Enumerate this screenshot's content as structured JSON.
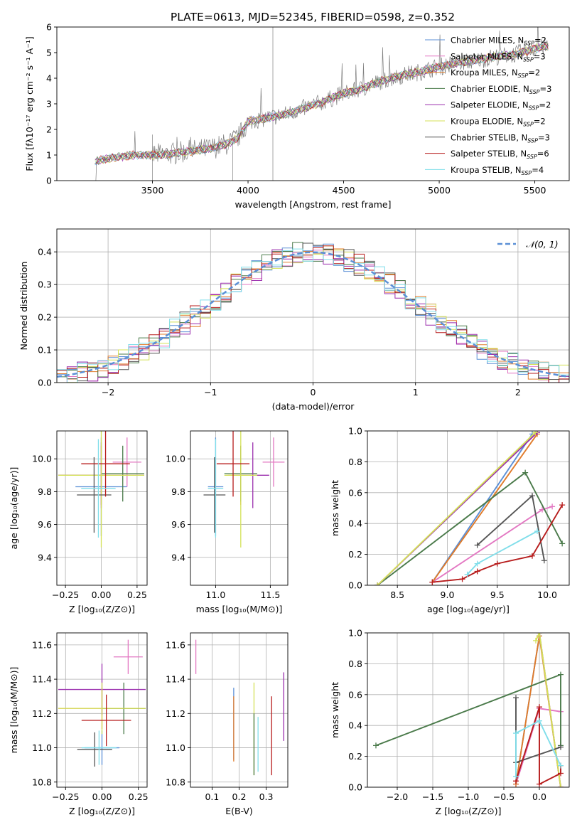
{
  "figure": {
    "title": "PLATE=0613, MJD=52345, FIBERID=0598, z=0.352"
  },
  "colors": {
    "Chabrier MILES": "#5b8fd6",
    "Salpeter MILES": "#e377c2",
    "Kroupa MILES": "#e07b2a",
    "Chabrier ELODIE": "#4a7a4a",
    "Salpeter ELODIE": "#9b2fae",
    "Kroupa ELODIE": "#d4e157",
    "Chabrier STELIB": "#555555",
    "Salpeter STELIB": "#b71c1c",
    "Kroupa STELIB": "#80deea",
    "gaussian": "#5b8fd6",
    "data": "#808080"
  },
  "chart_data": [
    {
      "id": "spectrum",
      "type": "line",
      "xlabel": "wavelength [Angstrom, rest frame]",
      "ylabel": "Flux [fλ10⁻¹⁷ erg cm⁻² s⁻¹ A⁻¹]",
      "xlim": [
        3000,
        5680
      ],
      "ylim": [
        0,
        6
      ],
      "xticks": [
        3500,
        4000,
        4500,
        5000,
        5500
      ],
      "yticks": [
        0,
        1,
        2,
        3,
        4,
        5,
        6
      ],
      "legend": [
        {
          "label": "Chabrier MILES, N",
          "sub": "SSP",
          "suffix": "=2",
          "key": "Chabrier MILES"
        },
        {
          "label": "Salpeter MILES, N",
          "sub": "SSP",
          "suffix": "=3",
          "key": "Salpeter MILES"
        },
        {
          "label": "Kroupa MILES, N",
          "sub": "SSP",
          "suffix": "=2",
          "key": "Kroupa MILES"
        },
        {
          "label": "Chabrier ELODIE, N",
          "sub": "SSP",
          "suffix": "=3",
          "key": "Chabrier ELODIE"
        },
        {
          "label": "Salpeter ELODIE, N",
          "sub": "SSP",
          "suffix": "=2",
          "key": "Salpeter ELODIE"
        },
        {
          "label": "Kroupa ELODIE, N",
          "sub": "SSP",
          "suffix": "=2",
          "key": "Kroupa ELODIE"
        },
        {
          "label": "Chabrier STELIB, N",
          "sub": "SSP",
          "suffix": "=3",
          "key": "Chabrier STELIB"
        },
        {
          "label": "Salpeter STELIB, N",
          "sub": "SSP",
          "suffix": "=6",
          "key": "Salpeter STELIB"
        },
        {
          "label": "Kroupa STELIB, N",
          "sub": "SSP",
          "suffix": "=4",
          "key": "Kroupa STELIB"
        }
      ],
      "legend_position": "upper-right",
      "continuum": {
        "x": [
          3200,
          3300,
          3400,
          3500,
          3600,
          3700,
          3800,
          3900,
          3950,
          4000,
          4100,
          4200,
          4300,
          4400,
          4500,
          4600,
          4700,
          4800,
          4900,
          5000,
          5100,
          5200,
          5300,
          5400,
          5500,
          5570
        ],
        "y": [
          0.75,
          0.9,
          1.0,
          1.0,
          1.05,
          1.15,
          1.25,
          1.45,
          1.7,
          2.3,
          2.45,
          2.6,
          2.85,
          3.1,
          3.4,
          3.6,
          3.9,
          4.1,
          4.25,
          4.45,
          4.6,
          4.7,
          4.85,
          4.95,
          5.15,
          5.25
        ]
      }
    },
    {
      "id": "residuals",
      "type": "line",
      "xlabel": "(data-model)/error",
      "ylabel": "Normed distribution",
      "xlim": [
        -2.5,
        2.5
      ],
      "ylim": [
        0,
        0.47
      ],
      "xticks": [
        -2,
        -1,
        0,
        1,
        2
      ],
      "yticks": [
        0.0,
        0.1,
        0.2,
        0.3,
        0.4
      ],
      "legend": [
        {
          "label": "𝒩(0, 1)",
          "key": "gaussian"
        }
      ],
      "legend_position": "upper-right",
      "grid": true
    },
    {
      "id": "age_vs_Z",
      "type": "scatter",
      "xlabel": "Z [log₁₀(Z/Z⊙)]",
      "ylabel": "age  [log₁₀(age/yr)]",
      "xlim": [
        -0.31,
        0.32
      ],
      "ylim": [
        9.23,
        10.17
      ],
      "xticks": [
        -0.25,
        0.0,
        0.25
      ],
      "yticks": [
        9.4,
        9.6,
        9.8,
        10.0
      ],
      "grid": true,
      "points": [
        {
          "key": "Chabrier MILES",
          "x": 0.0,
          "xerr": 0.18,
          "y": 9.83,
          "yerr": 0.3
        },
        {
          "key": "Salpeter MILES",
          "x": 0.18,
          "xerr": 0.1,
          "y": 9.98,
          "yerr": 0.15
        },
        {
          "key": "Kroupa MILES",
          "x": 0.0,
          "xerr": 0.3,
          "y": 9.9,
          "yerr": 0.18
        },
        {
          "key": "Chabrier ELODIE",
          "x": 0.15,
          "xerr": 0.15,
          "y": 9.91,
          "yerr": 0.17
        },
        {
          "key": "Salpeter ELODIE",
          "x": 0.0,
          "xerr": 0.3,
          "y": 9.9,
          "yerr": 0.2
        },
        {
          "key": "Kroupa ELODIE",
          "x": 0.0,
          "xerr": 0.3,
          "y": 9.9,
          "yerr": 0.44
        },
        {
          "key": "Chabrier STELIB",
          "x": -0.05,
          "xerr": 0.12,
          "y": 9.78,
          "yerr": 0.23
        },
        {
          "key": "Salpeter STELIB",
          "x": 0.03,
          "xerr": 0.17,
          "y": 9.97,
          "yerr": 0.2
        },
        {
          "key": "Kroupa STELIB",
          "x": -0.02,
          "xerr": 0.12,
          "y": 9.82,
          "yerr": 0.3
        }
      ]
    },
    {
      "id": "age_vs_mass",
      "type": "scatter",
      "xlabel": "mass [log₁₀(M/M⊙)]",
      "ylabel": "",
      "xlim": [
        10.77,
        11.66
      ],
      "ylim": [
        9.23,
        10.17
      ],
      "xticks": [
        11.0,
        11.5
      ],
      "yticks": [
        9.4,
        9.6,
        9.8,
        10.0
      ],
      "grid": true,
      "points": [
        {
          "key": "Chabrier MILES",
          "x": 11.0,
          "xerr": 0.07,
          "y": 9.83,
          "yerr": 0.3
        },
        {
          "key": "Salpeter MILES",
          "x": 11.53,
          "xerr": 0.1,
          "y": 9.98,
          "yerr": 0.15
        },
        {
          "key": "Kroupa MILES",
          "x": 11.23,
          "xerr": 0.12,
          "y": 9.9,
          "yerr": 0.18
        },
        {
          "key": "Chabrier ELODIE",
          "x": 11.23,
          "xerr": 0.15,
          "y": 9.91,
          "yerr": 0.17
        },
        {
          "key": "Salpeter ELODIE",
          "x": 11.34,
          "xerr": 0.15,
          "y": 9.9,
          "yerr": 0.2
        },
        {
          "key": "Kroupa ELODIE",
          "x": 11.23,
          "xerr": 0.15,
          "y": 9.9,
          "yerr": 0.44
        },
        {
          "key": "Chabrier STELIB",
          "x": 10.99,
          "xerr": 0.1,
          "y": 9.78,
          "yerr": 0.23
        },
        {
          "key": "Salpeter STELIB",
          "x": 11.16,
          "xerr": 0.15,
          "y": 9.97,
          "yerr": 0.2
        },
        {
          "key": "Kroupa STELIB",
          "x": 11.0,
          "xerr": 0.07,
          "y": 9.82,
          "yerr": 0.3
        }
      ]
    },
    {
      "id": "weight_vs_age",
      "type": "line",
      "xlabel": "age  [log₁₀(age/yr)]",
      "ylabel": "mass weight",
      "xlim": [
        8.2,
        10.22
      ],
      "ylim": [
        0,
        1
      ],
      "xticks": [
        8.5,
        9.0,
        9.5,
        10.0
      ],
      "yticks": [
        0.0,
        0.2,
        0.4,
        0.6,
        0.8,
        1.0
      ],
      "grid": true,
      "series": [
        {
          "key": "Chabrier MILES",
          "x": [
            8.85,
            9.85
          ],
          "y": [
            0.02,
            0.98
          ]
        },
        {
          "key": "Salpeter MILES",
          "x": [
            8.85,
            9.95,
            10.05
          ],
          "y": [
            0.02,
            0.49,
            0.51
          ]
        },
        {
          "key": "Kroupa MILES",
          "x": [
            8.85,
            9.9
          ],
          "y": [
            0.02,
            0.98
          ]
        },
        {
          "key": "Chabrier ELODIE",
          "x": [
            8.3,
            9.78,
            10.15
          ],
          "y": [
            0.0,
            0.73,
            0.27
          ]
        },
        {
          "key": "Salpeter ELODIE",
          "x": [
            8.3,
            9.9
          ],
          "y": [
            0.0,
            0.99
          ]
        },
        {
          "key": "Kroupa ELODIE",
          "x": [
            8.3,
            9.88
          ],
          "y": [
            0.0,
            0.99
          ]
        },
        {
          "key": "Chabrier STELIB",
          "x": [
            9.3,
            9.85,
            9.97
          ],
          "y": [
            0.26,
            0.58,
            0.16
          ]
        },
        {
          "key": "Salpeter STELIB",
          "x": [
            8.85,
            9.15,
            9.3,
            9.5,
            9.85,
            10.15
          ],
          "y": [
            0.02,
            0.04,
            0.09,
            0.14,
            0.19,
            0.52
          ]
        },
        {
          "key": "Kroupa STELIB",
          "x": [
            9.2,
            9.3,
            9.9
          ],
          "y": [
            0.07,
            0.14,
            0.35
          ]
        }
      ]
    },
    {
      "id": "mass_vs_Z",
      "type": "scatter",
      "xlabel": "Z [log₁₀(Z/Z⊙)]",
      "ylabel": "mass [log₁₀(M/M⊙)]",
      "xlim": [
        -0.31,
        0.31
      ],
      "ylim": [
        10.77,
        11.67
      ],
      "xticks": [
        -0.25,
        0.0,
        0.25
      ],
      "yticks": [
        10.8,
        11.0,
        11.2,
        11.4,
        11.6
      ],
      "grid": true,
      "points": [
        {
          "key": "Chabrier MILES",
          "x": 0.0,
          "xerr": 0.12,
          "y": 11.0,
          "yerr": 0.1
        },
        {
          "key": "Salpeter MILES",
          "x": 0.18,
          "xerr": 0.1,
          "y": 11.53,
          "yerr": 0.1
        },
        {
          "key": "Kroupa MILES",
          "x": 0.0,
          "xerr": 0.3,
          "y": 11.23,
          "yerr": 0.12
        },
        {
          "key": "Chabrier ELODIE",
          "x": 0.15,
          "xerr": 0.15,
          "y": 11.23,
          "yerr": 0.15
        },
        {
          "key": "Salpeter ELODIE",
          "x": 0.0,
          "xerr": 0.3,
          "y": 11.34,
          "yerr": 0.15
        },
        {
          "key": "Kroupa ELODIE",
          "x": 0.0,
          "xerr": 0.3,
          "y": 11.23,
          "yerr": 0.15
        },
        {
          "key": "Chabrier STELIB",
          "x": -0.05,
          "xerr": 0.12,
          "y": 10.99,
          "yerr": 0.1
        },
        {
          "key": "Salpeter STELIB",
          "x": 0.03,
          "xerr": 0.17,
          "y": 11.16,
          "yerr": 0.15
        },
        {
          "key": "Kroupa STELIB",
          "x": -0.02,
          "xerr": 0.12,
          "y": 11.0,
          "yerr": 0.1
        }
      ]
    },
    {
      "id": "mass_vs_EBV",
      "type": "scatter",
      "xlabel": "E(B-V)",
      "ylabel": "",
      "xlim": [
        0.02,
        0.38
      ],
      "ylim": [
        10.77,
        11.67
      ],
      "xticks": [
        0.1,
        0.2,
        0.3
      ],
      "yticks": [
        10.8,
        11.0,
        11.2,
        11.4,
        11.6
      ],
      "grid": true,
      "points": [
        {
          "key": "Salpeter MILES",
          "x": 0.04,
          "y": 11.53,
          "yerr": 0.1
        },
        {
          "key": "Chabrier MILES",
          "x": 0.18,
          "y": 11.14,
          "yerr": 0.21
        },
        {
          "key": "Kroupa MILES",
          "x": 0.18,
          "y": 11.11,
          "yerr": 0.19
        },
        {
          "key": "Kroupa ELODIE",
          "x": 0.255,
          "y": 11.11,
          "yerr": 0.27
        },
        {
          "key": "Chabrier ELODIE",
          "x": 0.255,
          "y": 11.02,
          "yerr": 0.18
        },
        {
          "key": "Kroupa STELIB",
          "x": 0.27,
          "y": 11.02,
          "yerr": 0.16
        },
        {
          "key": "Salpeter STELIB",
          "x": 0.32,
          "y": 11.07,
          "yerr": 0.23
        },
        {
          "key": "Salpeter ELODIE",
          "x": 0.365,
          "y": 11.24,
          "yerr": 0.2
        }
      ]
    },
    {
      "id": "weight_vs_Z",
      "type": "line",
      "xlabel": "Z [log₁₀(Z/Z⊙)]",
      "ylabel": "mass weight",
      "xlim": [
        -2.42,
        0.42
      ],
      "ylim": [
        0,
        1
      ],
      "xticks": [
        -2.0,
        -1.5,
        -1.0,
        -0.5,
        0.0
      ],
      "yticks": [
        0.0,
        0.2,
        0.4,
        0.6,
        0.8,
        1.0
      ],
      "grid": true,
      "series": [
        {
          "key": "Chabrier MILES",
          "x": [
            -0.33,
            0.0
          ],
          "y": [
            0.02,
            0.98
          ]
        },
        {
          "key": "Salpeter MILES",
          "x": [
            -0.33,
            0.0,
            0.3
          ],
          "y": [
            0.02,
            0.51,
            0.49
          ]
        },
        {
          "key": "Kroupa MILES",
          "x": [
            -0.33,
            0.0,
            0.3
          ],
          "y": [
            0.02,
            0.98,
            0.0
          ]
        },
        {
          "key": "Chabrier ELODIE",
          "x": [
            -2.3,
            0.3,
            0.3
          ],
          "y": [
            0.27,
            0.73,
            0.27
          ]
        },
        {
          "key": "Salpeter ELODIE",
          "x": [
            0.0,
            0.3
          ],
          "y": [
            1.0,
            0.0
          ]
        },
        {
          "key": "Kroupa ELODIE",
          "x": [
            -0.05,
            0.0,
            0.3
          ],
          "y": [
            0.95,
            1.0,
            0.0
          ]
        },
        {
          "key": "Chabrier STELIB",
          "x": [
            -0.33,
            -0.33,
            0.3
          ],
          "y": [
            0.58,
            0.16,
            0.26
          ]
        },
        {
          "key": "Salpeter STELIB",
          "x": [
            -0.33,
            0.0,
            0.0,
            0.3,
            0.3
          ],
          "y": [
            0.04,
            0.52,
            0.02,
            0.09,
            0.14
          ]
        },
        {
          "key": "Kroupa STELIB",
          "x": [
            -0.33,
            -0.33,
            0.0,
            0.3
          ],
          "y": [
            0.07,
            0.35,
            0.43,
            0.14
          ]
        }
      ]
    }
  ]
}
